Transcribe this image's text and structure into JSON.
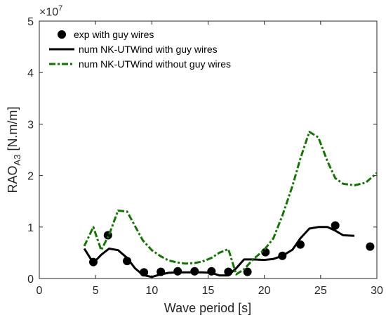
{
  "chart_data": {
    "type": "line",
    "xlabel": "Wave period [s]",
    "ylabel": {
      "main": "RAO",
      "subscript": "A3",
      "unit": " [N.m/m]"
    },
    "xlim": [
      0,
      30
    ],
    "ylim": [
      0,
      5
    ],
    "xticks": [
      "0",
      "5",
      "10",
      "15",
      "20",
      "25",
      "30"
    ],
    "yticks": [
      "0",
      "1",
      "2",
      "3",
      "4",
      "5"
    ],
    "y_multiplier": {
      "base": "×10",
      "exponent": "7"
    },
    "grid": false,
    "legend_position": "top-left",
    "series": [
      {
        "name": "exp with guy wires",
        "style": "markers",
        "color": "#000000",
        "x": [
          4.8,
          6.1,
          7.8,
          9.3,
          10.8,
          12.3,
          13.8,
          15.3,
          16.8,
          18.5,
          20.1,
          21.6,
          23.2,
          26.3,
          29.4
        ],
        "y": [
          0.32,
          0.84,
          0.34,
          0.12,
          0.13,
          0.14,
          0.14,
          0.14,
          0.13,
          0.13,
          0.51,
          0.44,
          0.66,
          1.03,
          0.62
        ]
      },
      {
        "name": "num NK-UTWind with guy wires",
        "style": "solid",
        "color": "#000000",
        "x": [
          4.0,
          4.8,
          5.5,
          6.2,
          7.0,
          7.8,
          8.5,
          9.2,
          10.0,
          10.8,
          11.5,
          12.3,
          13.0,
          13.8,
          14.5,
          15.3,
          16.0,
          16.8,
          17.5,
          18.2,
          19.0,
          20.0,
          20.8,
          21.6,
          22.5,
          23.2,
          24.0,
          24.8,
          25.6,
          26.3,
          27.0,
          28.0
        ],
        "y": [
          0.58,
          0.3,
          0.46,
          0.58,
          0.55,
          0.4,
          0.2,
          0.07,
          0.03,
          0.08,
          0.11,
          0.12,
          0.12,
          0.12,
          0.12,
          0.11,
          0.06,
          0.06,
          0.2,
          0.37,
          0.37,
          0.36,
          0.38,
          0.44,
          0.56,
          0.78,
          0.97,
          1.0,
          1.0,
          0.93,
          0.84,
          0.83
        ]
      },
      {
        "name": "num NK-UTWind without guy wires",
        "style": "dash-dot",
        "color": "#117700",
        "x": [
          4.0,
          4.8,
          5.5,
          6.2,
          7.0,
          7.8,
          8.5,
          9.2,
          10.0,
          10.8,
          11.5,
          12.3,
          13.0,
          13.8,
          14.5,
          15.3,
          16.0,
          16.8,
          17.5,
          18.2,
          19.0,
          20.0,
          20.8,
          21.6,
          22.5,
          23.2,
          24.0,
          24.8,
          25.6,
          26.3,
          27.0,
          28.0,
          29.0,
          30.0
        ],
        "y": [
          0.63,
          1.0,
          0.55,
          0.85,
          1.32,
          1.3,
          1.02,
          0.74,
          0.55,
          0.43,
          0.35,
          0.31,
          0.29,
          0.3,
          0.33,
          0.4,
          0.5,
          0.57,
          0.08,
          0.18,
          0.37,
          0.56,
          0.78,
          1.22,
          1.8,
          2.33,
          2.85,
          2.74,
          2.28,
          1.95,
          1.84,
          1.81,
          1.86,
          2.05
        ]
      }
    ]
  }
}
